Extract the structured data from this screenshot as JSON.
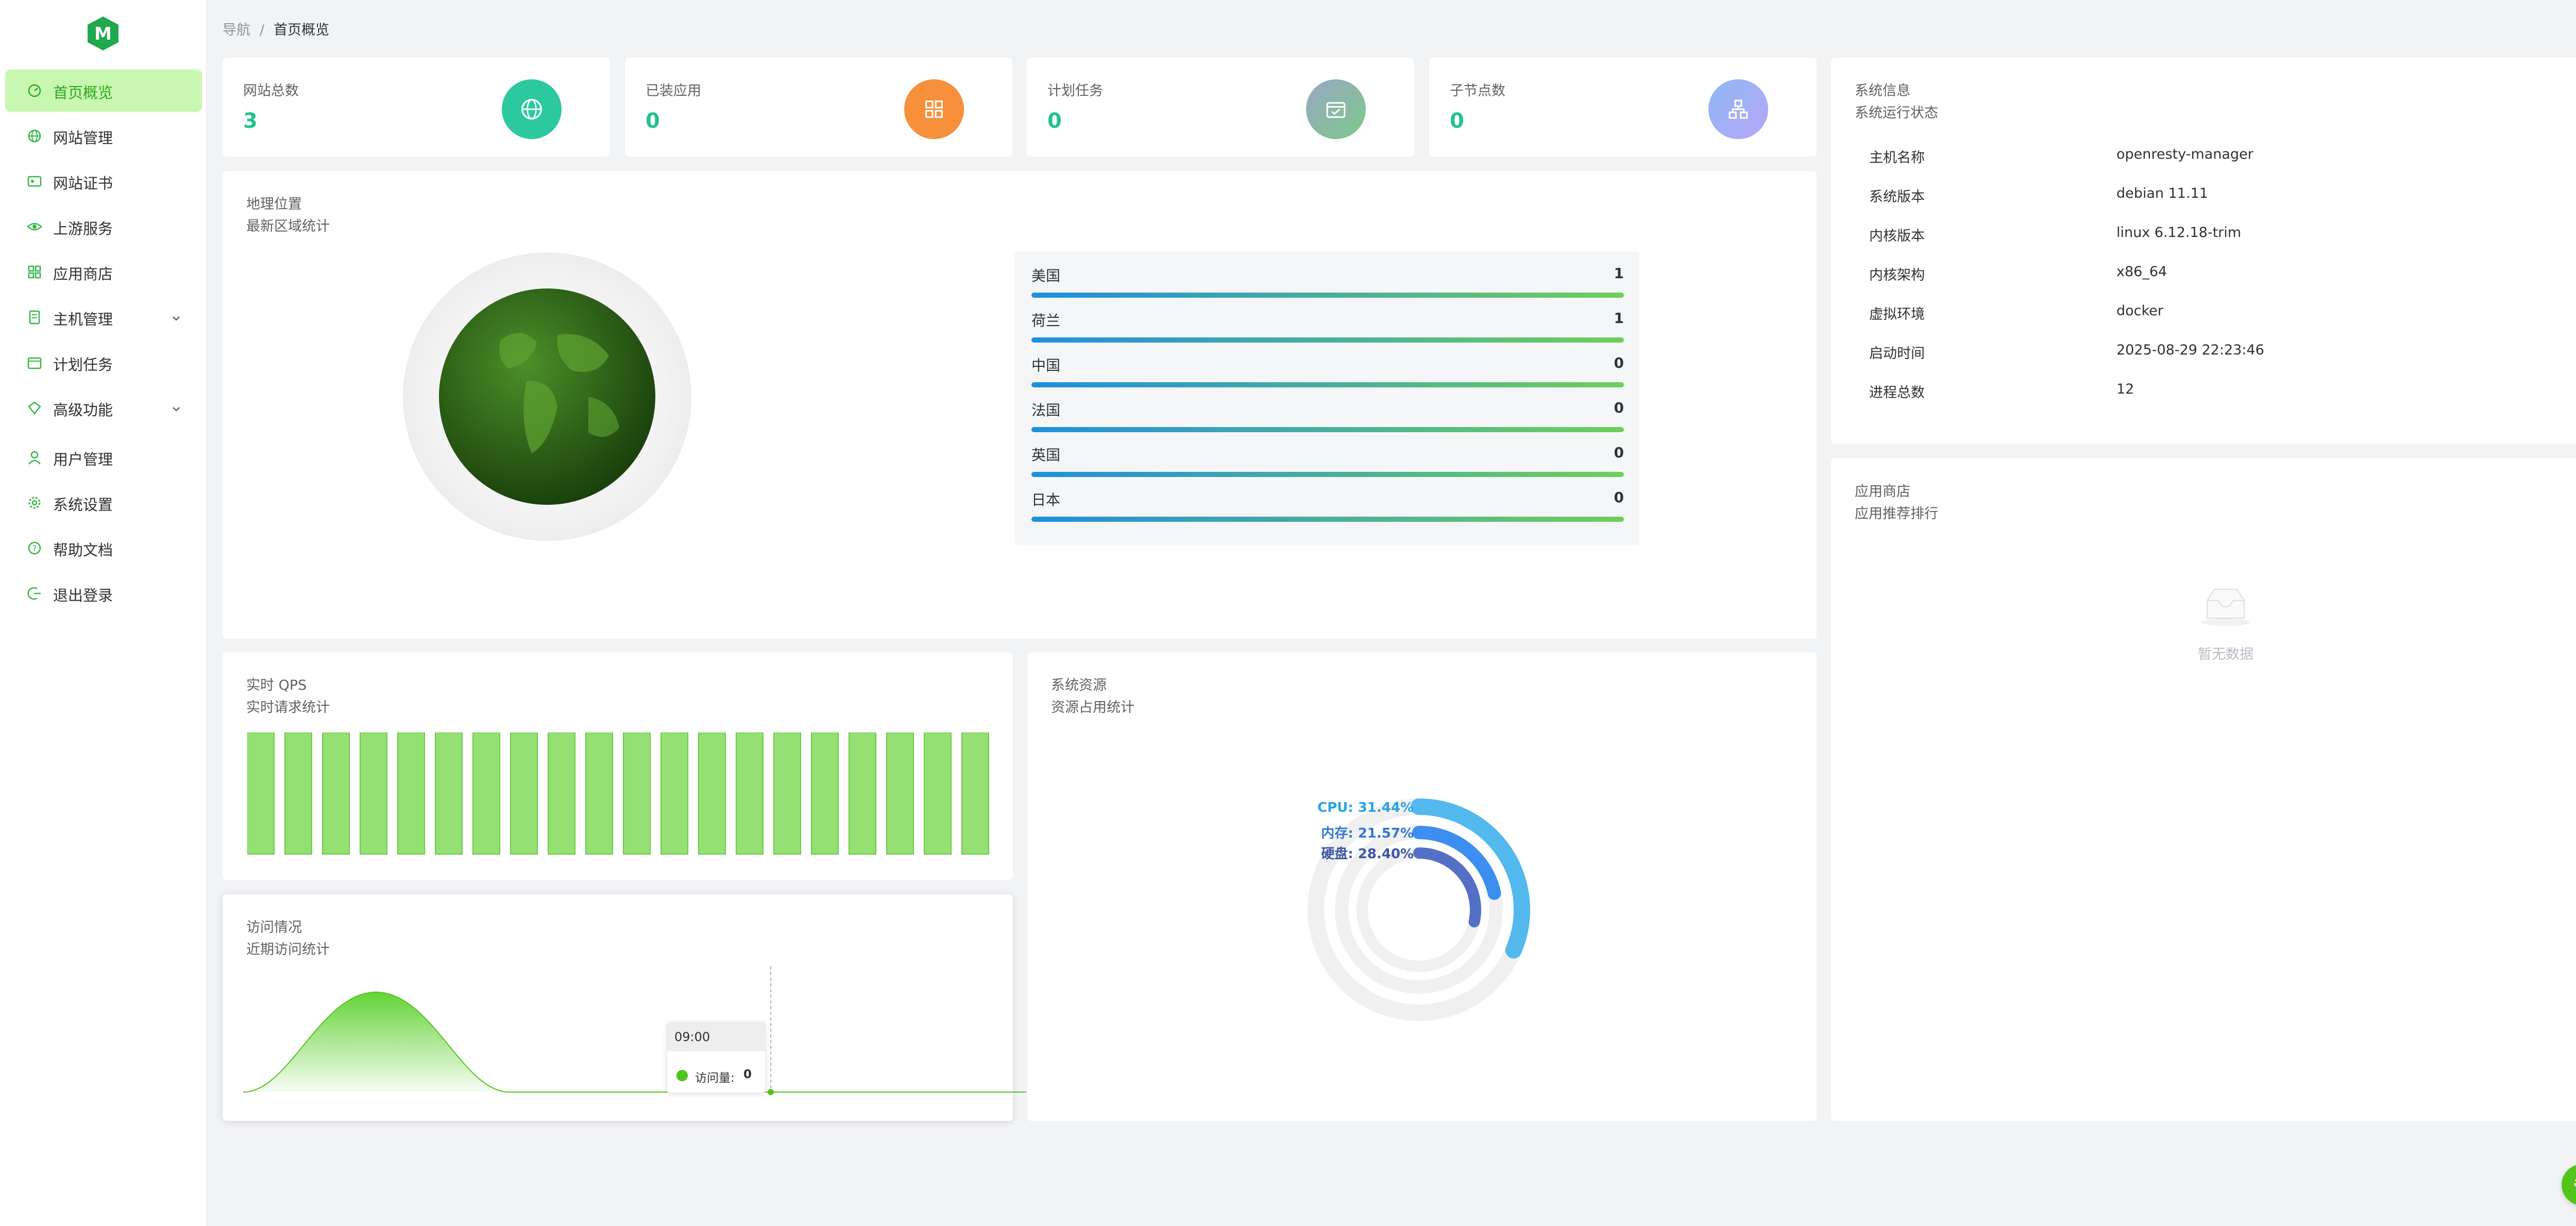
{
  "sidebar": {
    "items": [
      {
        "label": "首页概览",
        "icon": "dashboard-icon",
        "active": true
      },
      {
        "label": "网站管理",
        "icon": "globe-icon"
      },
      {
        "label": "网站证书",
        "icon": "certificate-icon"
      },
      {
        "label": "上游服务",
        "icon": "eye-icon"
      },
      {
        "label": "应用商店",
        "icon": "grid-icon"
      },
      {
        "label": "主机管理",
        "icon": "server-icon",
        "expandable": true
      },
      {
        "label": "计划任务",
        "icon": "calendar-icon"
      },
      {
        "label": "高级功能",
        "icon": "diamond-icon",
        "expandable": true
      },
      {
        "label": "用户管理",
        "icon": "user-icon"
      },
      {
        "label": "系统设置",
        "icon": "gear-icon"
      },
      {
        "label": "帮助文档",
        "icon": "help-icon"
      },
      {
        "label": "退出登录",
        "icon": "logout-icon"
      }
    ]
  },
  "breadcrumb": {
    "root": "导航",
    "sep": "/",
    "current": "首页概览"
  },
  "stats": [
    {
      "label": "网站总数",
      "value": "3",
      "icon": "globe-icon",
      "color": "#2cc9a0"
    },
    {
      "label": "已装应用",
      "value": "0",
      "icon": "apps-icon",
      "color": "#f7903a"
    },
    {
      "label": "计划任务",
      "value": "0",
      "icon": "calendar-icon",
      "color": "#8fbf9d"
    },
    {
      "label": "子节点数",
      "value": "0",
      "icon": "nodes-icon",
      "color": "#a6b3f5"
    }
  ],
  "geo": {
    "title": "地理位置",
    "subtitle": "最新区域统计",
    "rows": [
      {
        "name": "美国",
        "value": "1"
      },
      {
        "name": "荷兰",
        "value": "1"
      },
      {
        "name": "中国",
        "value": "0"
      },
      {
        "name": "法国",
        "value": "0"
      },
      {
        "name": "英国",
        "value": "0"
      },
      {
        "name": "日本",
        "value": "0"
      }
    ]
  },
  "system": {
    "title": "系统信息",
    "subtitle": "系统运行状态",
    "rows": [
      {
        "key": "主机名称",
        "value": "openresty-manager"
      },
      {
        "key": "系统版本",
        "value": "debian 11.11"
      },
      {
        "key": "内核版本",
        "value": "linux 6.12.18-trim"
      },
      {
        "key": "内核架构",
        "value": "x86_64"
      },
      {
        "key": "虚拟环境",
        "value": "docker"
      },
      {
        "key": "启动时间",
        "value": "2025-08-29 22:23:46"
      },
      {
        "key": "进程总数",
        "value": "12"
      }
    ]
  },
  "app_store": {
    "title": "应用商店",
    "subtitle": "应用推荐排行",
    "empty_text": "暂无数据"
  },
  "qps": {
    "title": "实时 QPS",
    "subtitle": "实时请求统计",
    "bar_count": 20
  },
  "resources": {
    "title": "系统资源",
    "subtitle": "资源占用统计",
    "items": [
      {
        "label": "CPU: 31.44%",
        "value": 31.44,
        "color": "#52b8ee",
        "text_color": "#2ba3e6"
      },
      {
        "label": "内存: 21.57%",
        "value": 21.57,
        "color": "#3c8ef0",
        "text_color": "#3177d8"
      },
      {
        "label": "硬盘: 28.40%",
        "value": 28.4,
        "color": "#5470c6",
        "text_color": "#3e56a8"
      }
    ]
  },
  "visits": {
    "title": "访问情况",
    "subtitle": "近期访问统计",
    "tooltip_time": "09:00",
    "tooltip_series": "访问量:",
    "tooltip_value": "0"
  }
}
